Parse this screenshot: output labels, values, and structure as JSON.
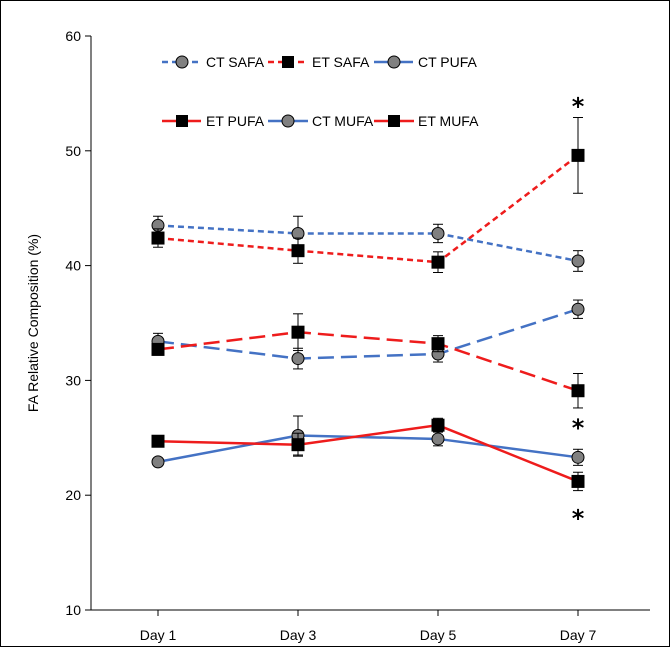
{
  "chart_data": {
    "type": "line",
    "xlabel": "",
    "ylabel": "FA Relative Composition (%)",
    "categories": [
      "Day 1",
      "Day 3",
      "Day 5",
      "Day 7"
    ],
    "ylim": [
      10,
      60
    ],
    "yticks": [
      "10",
      "20",
      "30",
      "40",
      "50",
      "60"
    ],
    "grid": false,
    "legend_position": "top",
    "series": [
      {
        "name": "CT SAFA",
        "color": "#4472C4",
        "dash": "short-dash",
        "marker": "circle",
        "values": [
          43.5,
          42.8,
          42.8,
          40.4
        ],
        "errors": [
          0.8,
          1.5,
          0.8,
          0.9
        ]
      },
      {
        "name": "ET SAFA",
        "color": "#EE1C1C",
        "dash": "short-dash",
        "marker": "square",
        "values": [
          42.4,
          41.3,
          40.3,
          49.6
        ],
        "errors": [
          0.8,
          1.1,
          0.9,
          3.3
        ]
      },
      {
        "name": "CT PUFA",
        "color": "#4472C4",
        "dash": "long-dash",
        "marker": "circle",
        "values": [
          33.4,
          31.9,
          32.3,
          36.2
        ],
        "errors": [
          0.7,
          0.9,
          0.7,
          0.8
        ]
      },
      {
        "name": "ET PUFA",
        "color": "#EE1C1C",
        "dash": "long-dash",
        "marker": "square",
        "values": [
          32.7,
          34.2,
          33.2,
          29.1
        ],
        "errors": [
          0.5,
          1.6,
          0.7,
          1.5
        ]
      },
      {
        "name": "CT MUFA",
        "color": "#4472C4",
        "dash": "solid",
        "marker": "circle",
        "values": [
          22.9,
          25.2,
          24.9,
          23.3
        ],
        "errors": [
          0.3,
          1.7,
          0.6,
          0.7
        ]
      },
      {
        "name": "ET MUFA",
        "color": "#EE1C1C",
        "dash": "solid",
        "marker": "square",
        "values": [
          24.7,
          24.4,
          26.1,
          21.2
        ],
        "errors": [
          0.3,
          1.0,
          0.6,
          0.8
        ]
      }
    ],
    "annotations": [
      {
        "text": "*",
        "x": "Day 7",
        "y": 54.2
      },
      {
        "text": "*",
        "x": "Day 7",
        "y": 26.2
      },
      {
        "text": "*",
        "x": "Day 7",
        "y": 18.3
      }
    ]
  }
}
